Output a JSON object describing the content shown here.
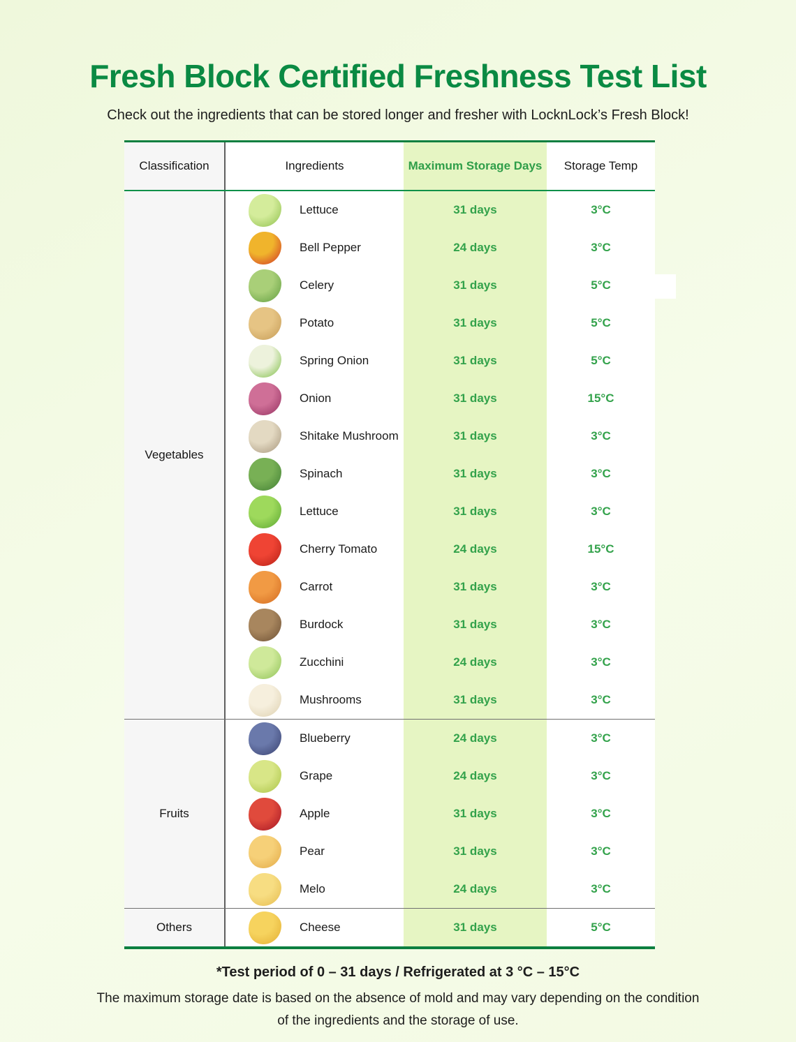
{
  "title": "Fresh Block Certified Freshness Test List",
  "subtitle": "Check out the ingredients that can be stored longer and fresher with LocknLock’s Fresh Block!",
  "table": {
    "headers": [
      "Classification",
      "Ingredients",
      "Maximum Storage Days",
      "Storage Temp"
    ],
    "groups": [
      {
        "classification": "Vegetables",
        "rows": [
          {
            "name": "Lettuce",
            "days": "31 days",
            "temp": "3°C",
            "icon": "lettuce-icon",
            "colors": [
              "#d4ec9b",
              "#8cbe4b"
            ]
          },
          {
            "name": "Bell Pepper",
            "days": "24 days",
            "temp": "3°C",
            "icon": "bell-pepper-icon",
            "colors": [
              "#f0b42c",
              "#cf2f26"
            ]
          },
          {
            "name": "Celery",
            "days": "31 days",
            "temp": "5°C",
            "icon": "celery-icon",
            "colors": [
              "#a9cf78",
              "#5f9c3e"
            ]
          },
          {
            "name": "Potato",
            "days": "31 days",
            "temp": "5°C",
            "icon": "potato-icon",
            "colors": [
              "#e6c484",
              "#c49a55"
            ]
          },
          {
            "name": "Spring Onion",
            "days": "31 days",
            "temp": "5°C",
            "icon": "spring-onion-icon",
            "colors": [
              "#edf2dc",
              "#79bb3f"
            ]
          },
          {
            "name": "Onion",
            "days": "31 days",
            "temp": "15°C",
            "icon": "onion-icon",
            "colors": [
              "#cf6f97",
              "#93305f"
            ]
          },
          {
            "name": "Shitake Mushroom",
            "days": "31 days",
            "temp": "3°C",
            "icon": "shitake-mushroom-icon",
            "colors": [
              "#e3d9c2",
              "#a5947a"
            ]
          },
          {
            "name": "Spinach",
            "days": "31 days",
            "temp": "3°C",
            "icon": "spinach-icon",
            "colors": [
              "#78b055",
              "#3f7d33"
            ]
          },
          {
            "name": "Lettuce",
            "days": "31 days",
            "temp": "3°C",
            "icon": "lettuce-head-icon",
            "colors": [
              "#9ed95c",
              "#58a42f"
            ]
          },
          {
            "name": "Cherry Tomato",
            "days": "24 days",
            "temp": "15°C",
            "icon": "cherry-tomato-icon",
            "colors": [
              "#ef4434",
              "#b51f15"
            ]
          },
          {
            "name": "Carrot",
            "days": "31 days",
            "temp": "3°C",
            "icon": "carrot-icon",
            "colors": [
              "#f19a44",
              "#d2691f"
            ]
          },
          {
            "name": "Burdock",
            "days": "31 days",
            "temp": "3°C",
            "icon": "burdock-icon",
            "colors": [
              "#a8865e",
              "#6c4f33"
            ]
          },
          {
            "name": "Zucchini",
            "days": "24 days",
            "temp": "3°C",
            "icon": "zucchini-icon",
            "colors": [
              "#cfe99a",
              "#8cc054"
            ]
          },
          {
            "name": "Mushrooms",
            "days": "31 days",
            "temp": "3°C",
            "icon": "enoki-mushrooms-icon",
            "colors": [
              "#f6efdd",
              "#dccfae"
            ]
          }
        ]
      },
      {
        "classification": "Fruits",
        "rows": [
          {
            "name": "Blueberry",
            "days": "24 days",
            "temp": "3°C",
            "icon": "blueberry-icon",
            "colors": [
              "#6a79ab",
              "#38406e"
            ]
          },
          {
            "name": "Grape",
            "days": "24 days",
            "temp": "3°C",
            "icon": "grape-icon",
            "colors": [
              "#d8e687",
              "#a9c243"
            ]
          },
          {
            "name": "Apple",
            "days": "31 days",
            "temp": "3°C",
            "icon": "apple-icon",
            "colors": [
              "#e04a3c",
              "#a31323"
            ]
          },
          {
            "name": "Pear",
            "days": "31 days",
            "temp": "3°C",
            "icon": "pear-icon",
            "colors": [
              "#f6d078",
              "#e2a844"
            ]
          },
          {
            "name": "Melo",
            "days": "24 days",
            "temp": "3°C",
            "icon": "melo-icon",
            "colors": [
              "#f7dd82",
              "#e5bb4e"
            ]
          }
        ]
      },
      {
        "classification": "Others",
        "rows": [
          {
            "name": "Cheese",
            "days": "31 days",
            "temp": "5°C",
            "icon": "cheese-icon",
            "colors": [
              "#f6d35e",
              "#e2ad33"
            ]
          }
        ]
      }
    ]
  },
  "footnotes": {
    "bold": "*Test period of 0 – 31 days / Refrigerated at 3 °C – 15°C",
    "line1": "The maximum storage date is based on the absence of mold and may vary depending on the condition",
    "line2": "of the ingredients and the storage of use."
  },
  "colors": {
    "title_green": "#0a8a43",
    "border_green": "#0c7f40",
    "value_green": "#33a24b",
    "days_column_bg": "#e6f5c3",
    "classification_bg": "#f6f6f6",
    "page_bg": "#f3fae4"
  }
}
